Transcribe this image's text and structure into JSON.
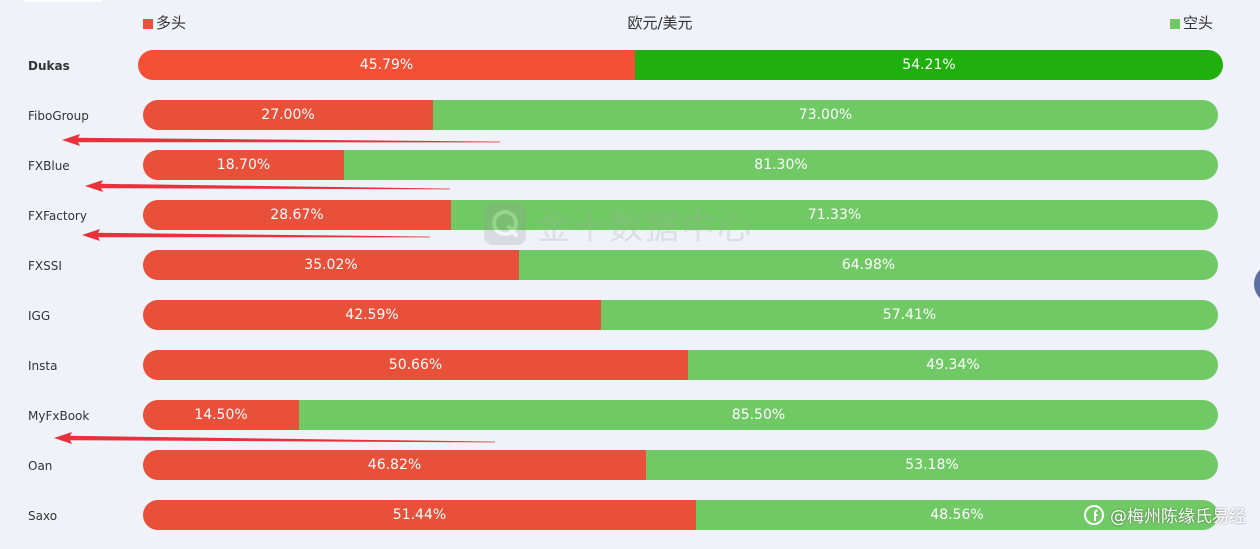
{
  "chart_data": {
    "type": "bar",
    "stacked": true,
    "orientation": "horizontal",
    "title": "欧元/美元",
    "legend": [
      {
        "label": "多头",
        "color": "#e8503a"
      },
      {
        "label": "空头",
        "color": "#71c966"
      }
    ],
    "categories": [
      "Dukas",
      "FiboGroup",
      "FXBlue",
      "FXFactory",
      "FXSSI",
      "IGG",
      "Insta",
      "MyFxBook",
      "Oan",
      "Saxo"
    ],
    "series": [
      {
        "name": "多头",
        "values": [
          45.79,
          27.0,
          18.7,
          28.67,
          35.02,
          42.59,
          50.66,
          14.5,
          46.82,
          51.44
        ],
        "labels": [
          "45.79%",
          "27.00%",
          "18.70%",
          "28.67%",
          "35.02%",
          "42.59%",
          "50.66%",
          "14.50%",
          "46.82%",
          "51.44%"
        ]
      },
      {
        "name": "空头",
        "values": [
          54.21,
          73.0,
          81.3,
          71.33,
          64.98,
          57.41,
          49.34,
          85.5,
          53.18,
          48.56
        ],
        "labels": [
          "54.21%",
          "73.00%",
          "81.30%",
          "71.33%",
          "64.98%",
          "57.41%",
          "49.34%",
          "85.50%",
          "53.18%",
          "48.56%"
        ]
      }
    ],
    "highlight_category": "Dukas",
    "highlight_colors": {
      "long": "#f35035",
      "short": "#1fb00e"
    },
    "xlim": [
      0,
      100
    ],
    "annotations": {
      "type": "red-arrows",
      "color": "#e8313a",
      "pointing_to": [
        "FiboGroup",
        "FXBlue",
        "FXFactory",
        "MyFxBook"
      ]
    }
  },
  "watermark": {
    "text": "金十数据中心",
    "icon": "jin10-logo-icon"
  },
  "footer": {
    "text": "@梅州陈缘氏易经",
    "icon": "platform-logo-icon"
  }
}
